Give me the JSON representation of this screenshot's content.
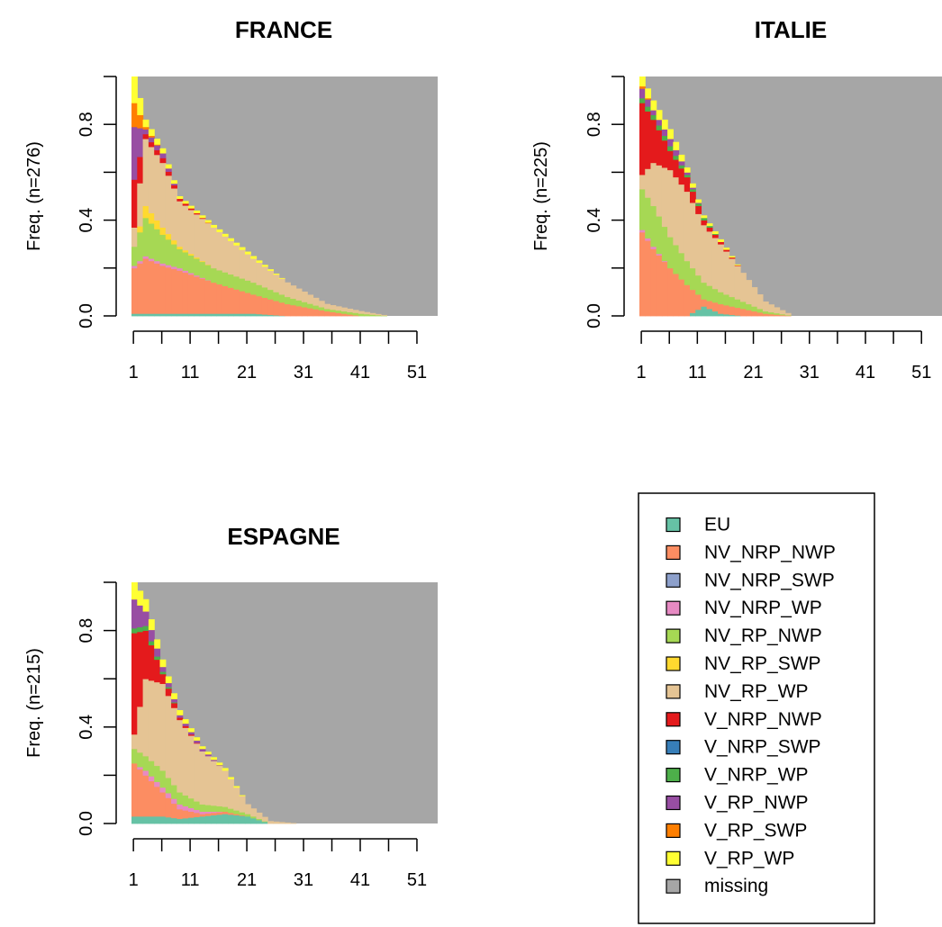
{
  "chart_data": {
    "type": "area",
    "states": [
      {
        "name": "EU",
        "color": "#66C2A5"
      },
      {
        "name": "NV_NRP_NWP",
        "color": "#FC8D62"
      },
      {
        "name": "NV_NRP_SWP",
        "color": "#8DA0CB"
      },
      {
        "name": "NV_NRP_WP",
        "color": "#E78AC3"
      },
      {
        "name": "NV_RP_NWP",
        "color": "#A6D854"
      },
      {
        "name": "NV_RP_SWP",
        "color": "#FFD92F"
      },
      {
        "name": "NV_RP_WP",
        "color": "#E5C494"
      },
      {
        "name": "V_NRP_NWP",
        "color": "#E41A1C"
      },
      {
        "name": "V_NRP_SWP",
        "color": "#377EB8"
      },
      {
        "name": "V_NRP_WP",
        "color": "#4DAF4A"
      },
      {
        "name": "V_RP_NWP",
        "color": "#984EA3"
      },
      {
        "name": "V_RP_SWP",
        "color": "#FF7F00"
      },
      {
        "name": "V_RP_WP",
        "color": "#FFFF33"
      },
      {
        "name": "missing",
        "color": "#A6A6A6"
      }
    ],
    "x_ticks": [
      "1",
      "11",
      "21",
      "31",
      "41",
      "51"
    ],
    "y_ticks": [
      "0.0",
      "0.4",
      "0.8"
    ],
    "xlim": [
      1,
      54
    ],
    "ylim": [
      0,
      1
    ],
    "panels": [
      {
        "title": "FRANCE",
        "ylabel": "Freq. (n=276)",
        "profile": [
          {
            "x": 1,
            "nonmissing": 1.0,
            "EU": 0.01,
            "NV_NRP_NWP": 0.19,
            "NV_NRP_SWP": 0.0,
            "NV_NRP_WP": 0.01,
            "NV_RP_NWP": 0.08,
            "NV_RP_SWP": 0.0,
            "NV_RP_WP": 0.08,
            "V_NRP_NWP": 0.2,
            "V_NRP_SWP": 0.0,
            "V_NRP_WP": 0.0,
            "V_RP_NWP": 0.22,
            "V_RP_SWP": 0.1,
            "V_RP_WP": 0.11
          },
          {
            "x": 3,
            "nonmissing": 0.82,
            "EU": 0.01,
            "NV_NRP_NWP": 0.23,
            "NV_NRP_SWP": 0.0,
            "NV_NRP_WP": 0.01,
            "NV_RP_NWP": 0.16,
            "NV_RP_SWP": 0.05,
            "NV_RP_WP": 0.28,
            "V_NRP_NWP": 0.02,
            "V_NRP_SWP": 0.0,
            "V_NRP_WP": 0.0,
            "V_RP_NWP": 0.02,
            "V_RP_SWP": 0.01,
            "V_RP_WP": 0.03
          },
          {
            "x": 6,
            "nonmissing": 0.7,
            "EU": 0.01,
            "NV_NRP_NWP": 0.2,
            "NV_NRP_SWP": 0.0,
            "NV_NRP_WP": 0.01,
            "NV_RP_NWP": 0.12,
            "NV_RP_SWP": 0.03,
            "NV_RP_WP": 0.27,
            "V_NRP_NWP": 0.02,
            "V_NRP_SWP": 0.0,
            "V_NRP_WP": 0.0,
            "V_RP_NWP": 0.02,
            "V_RP_SWP": 0.0,
            "V_RP_WP": 0.02
          },
          {
            "x": 9,
            "nonmissing": 0.5,
            "EU": 0.01,
            "NV_NRP_NWP": 0.18,
            "NV_NRP_SWP": 0.0,
            "NV_NRP_WP": 0.01,
            "NV_RP_NWP": 0.08,
            "NV_RP_SWP": 0.01,
            "NV_RP_WP": 0.19,
            "V_NRP_NWP": 0.01,
            "V_NRP_SWP": 0.0,
            "V_NRP_WP": 0.0,
            "V_RP_NWP": 0.0,
            "V_RP_SWP": 0.0,
            "V_RP_WP": 0.01
          },
          {
            "x": 15,
            "nonmissing": 0.38,
            "EU": 0.01,
            "NV_NRP_NWP": 0.13,
            "NV_NRP_SWP": 0.0,
            "NV_NRP_WP": 0.0,
            "NV_RP_NWP": 0.06,
            "NV_RP_SWP": 0.0,
            "NV_RP_WP": 0.17,
            "V_NRP_NWP": 0.0,
            "V_NRP_SWP": 0.0,
            "V_NRP_WP": 0.0,
            "V_RP_NWP": 0.0,
            "V_RP_SWP": 0.0,
            "V_RP_WP": 0.01
          },
          {
            "x": 22,
            "nonmissing": 0.25,
            "EU": 0.01,
            "NV_NRP_NWP": 0.08,
            "NV_NRP_SWP": 0.0,
            "NV_NRP_WP": 0.0,
            "NV_RP_NWP": 0.05,
            "NV_RP_SWP": 0.0,
            "NV_RP_WP": 0.1,
            "V_NRP_NWP": 0.0,
            "V_NRP_SWP": 0.0,
            "V_NRP_WP": 0.0,
            "V_RP_NWP": 0.0,
            "V_RP_SWP": 0.0,
            "V_RP_WP": 0.01
          },
          {
            "x": 28,
            "nonmissing": 0.14,
            "EU": 0.0,
            "NV_NRP_NWP": 0.05,
            "NV_NRP_SWP": 0.0,
            "NV_NRP_WP": 0.0,
            "NV_RP_NWP": 0.03,
            "NV_RP_SWP": 0.0,
            "NV_RP_WP": 0.06,
            "V_NRP_NWP": 0.0,
            "V_NRP_SWP": 0.0,
            "V_NRP_WP": 0.0,
            "V_RP_NWP": 0.0,
            "V_RP_SWP": 0.0,
            "V_RP_WP": 0.0
          },
          {
            "x": 35,
            "nonmissing": 0.05,
            "EU": 0.0,
            "NV_NRP_NWP": 0.02,
            "NV_NRP_SWP": 0.0,
            "NV_NRP_WP": 0.0,
            "NV_RP_NWP": 0.01,
            "NV_RP_SWP": 0.0,
            "NV_RP_WP": 0.02,
            "V_NRP_NWP": 0.0,
            "V_NRP_SWP": 0.0,
            "V_NRP_WP": 0.0,
            "V_RP_NWP": 0.0,
            "V_RP_SWP": 0.0,
            "V_RP_WP": 0.0
          },
          {
            "x": 41,
            "nonmissing": 0.02,
            "EU": 0.0,
            "NV_NRP_NWP": 0.0,
            "NV_NRP_SWP": 0.0,
            "NV_NRP_WP": 0.0,
            "NV_RP_NWP": 0.01,
            "NV_RP_SWP": 0.0,
            "NV_RP_WP": 0.01,
            "V_NRP_NWP": 0.0,
            "V_NRP_SWP": 0.0,
            "V_NRP_WP": 0.0,
            "V_RP_NWP": 0.0,
            "V_RP_SWP": 0.0,
            "V_RP_WP": 0.0
          },
          {
            "x": 46,
            "nonmissing": 0.0,
            "EU": 0.0,
            "NV_NRP_NWP": 0.0,
            "NV_NRP_SWP": 0.0,
            "NV_NRP_WP": 0.0,
            "NV_RP_NWP": 0.0,
            "NV_RP_SWP": 0.0,
            "NV_RP_WP": 0.0,
            "V_NRP_NWP": 0.0,
            "V_NRP_SWP": 0.0,
            "V_NRP_WP": 0.0,
            "V_RP_NWP": 0.0,
            "V_RP_SWP": 0.0,
            "V_RP_WP": 0.0
          }
        ]
      },
      {
        "title": "ITALIE",
        "ylabel": "Freq. (n=225)",
        "profile": [
          {
            "x": 1,
            "nonmissing": 1.0,
            "EU": 0.0,
            "NV_NRP_NWP": 0.35,
            "NV_NRP_SWP": 0.0,
            "NV_NRP_WP": 0.01,
            "NV_RP_NWP": 0.17,
            "NV_RP_SWP": 0.0,
            "NV_RP_WP": 0.06,
            "V_NRP_NWP": 0.3,
            "V_NRP_SWP": 0.0,
            "V_NRP_WP": 0.02,
            "V_RP_NWP": 0.04,
            "V_RP_SWP": 0.01,
            "V_RP_WP": 0.04
          },
          {
            "x": 3,
            "nonmissing": 0.9,
            "EU": 0.0,
            "NV_NRP_NWP": 0.28,
            "NV_NRP_SWP": 0.0,
            "NV_NRP_WP": 0.01,
            "NV_RP_NWP": 0.17,
            "NV_RP_SWP": 0.0,
            "NV_RP_WP": 0.18,
            "V_NRP_NWP": 0.18,
            "V_NRP_SWP": 0.0,
            "V_NRP_WP": 0.02,
            "V_RP_NWP": 0.02,
            "V_RP_SWP": 0.0,
            "V_RP_WP": 0.04
          },
          {
            "x": 6,
            "nonmissing": 0.78,
            "EU": 0.0,
            "NV_NRP_NWP": 0.2,
            "NV_NRP_SWP": 0.0,
            "NV_NRP_WP": 0.0,
            "NV_RP_NWP": 0.13,
            "NV_RP_SWP": 0.0,
            "NV_RP_WP": 0.28,
            "V_NRP_NWP": 0.08,
            "V_NRP_SWP": 0.0,
            "V_NRP_WP": 0.02,
            "V_RP_NWP": 0.03,
            "V_RP_SWP": 0.0,
            "V_RP_WP": 0.04
          },
          {
            "x": 9,
            "nonmissing": 0.62,
            "EU": 0.0,
            "NV_NRP_NWP": 0.13,
            "NV_NRP_SWP": 0.0,
            "NV_NRP_WP": 0.0,
            "NV_RP_NWP": 0.1,
            "NV_RP_SWP": 0.0,
            "NV_RP_WP": 0.29,
            "V_NRP_NWP": 0.06,
            "V_NRP_SWP": 0.0,
            "V_NRP_WP": 0.01,
            "V_RP_NWP": 0.01,
            "V_RP_SWP": 0.0,
            "V_RP_WP": 0.02
          },
          {
            "x": 12,
            "nonmissing": 0.42,
            "EU": 0.04,
            "NV_NRP_NWP": 0.03,
            "NV_NRP_SWP": 0.0,
            "NV_NRP_WP": 0.0,
            "NV_RP_NWP": 0.07,
            "NV_RP_SWP": 0.0,
            "NV_RP_WP": 0.24,
            "V_NRP_NWP": 0.02,
            "V_NRP_SWP": 0.0,
            "V_NRP_WP": 0.01,
            "V_RP_NWP": 0.0,
            "V_RP_SWP": 0.0,
            "V_RP_WP": 0.01
          },
          {
            "x": 15,
            "nonmissing": 0.32,
            "EU": 0.01,
            "NV_NRP_NWP": 0.04,
            "NV_NRP_SWP": 0.0,
            "NV_NRP_WP": 0.0,
            "NV_RP_NWP": 0.05,
            "NV_RP_SWP": 0.0,
            "NV_RP_WP": 0.2,
            "V_NRP_NWP": 0.01,
            "V_NRP_SWP": 0.0,
            "V_NRP_WP": 0.0,
            "V_RP_NWP": 0.0,
            "V_RP_SWP": 0.0,
            "V_RP_WP": 0.01
          },
          {
            "x": 19,
            "nonmissing": 0.18,
            "EU": 0.0,
            "NV_NRP_NWP": 0.03,
            "NV_NRP_SWP": 0.0,
            "NV_NRP_WP": 0.0,
            "NV_RP_NWP": 0.03,
            "NV_RP_SWP": 0.0,
            "NV_RP_WP": 0.12,
            "V_NRP_NWP": 0.0,
            "V_NRP_SWP": 0.0,
            "V_NRP_WP": 0.0,
            "V_RP_NWP": 0.0,
            "V_RP_SWP": 0.0,
            "V_RP_WP": 0.0
          },
          {
            "x": 23,
            "nonmissing": 0.06,
            "EU": 0.0,
            "NV_NRP_NWP": 0.01,
            "NV_NRP_SWP": 0.0,
            "NV_NRP_WP": 0.0,
            "NV_RP_NWP": 0.01,
            "NV_RP_SWP": 0.0,
            "NV_RP_WP": 0.04,
            "V_NRP_NWP": 0.0,
            "V_NRP_SWP": 0.0,
            "V_NRP_WP": 0.0,
            "V_RP_NWP": 0.0,
            "V_RP_SWP": 0.0,
            "V_RP_WP": 0.0
          },
          {
            "x": 28,
            "nonmissing": 0.0,
            "EU": 0.0,
            "NV_NRP_NWP": 0.0,
            "NV_NRP_SWP": 0.0,
            "NV_NRP_WP": 0.0,
            "NV_RP_NWP": 0.0,
            "NV_RP_SWP": 0.0,
            "NV_RP_WP": 0.0,
            "V_NRP_NWP": 0.0,
            "V_NRP_SWP": 0.0,
            "V_NRP_WP": 0.0,
            "V_RP_NWP": 0.0,
            "V_RP_SWP": 0.0,
            "V_RP_WP": 0.0
          }
        ]
      },
      {
        "title": "ESPAGNE",
        "ylabel": "Freq. (n=215)",
        "profile": [
          {
            "x": 1,
            "nonmissing": 1.0,
            "EU": 0.03,
            "NV_NRP_NWP": 0.22,
            "NV_NRP_SWP": 0.0,
            "NV_NRP_WP": 0.0,
            "NV_RP_NWP": 0.06,
            "NV_RP_SWP": 0.0,
            "NV_RP_WP": 0.06,
            "V_NRP_NWP": 0.42,
            "V_NRP_SWP": 0.0,
            "V_NRP_WP": 0.02,
            "V_RP_NWP": 0.12,
            "V_RP_SWP": 0.0,
            "V_RP_WP": 0.07
          },
          {
            "x": 3,
            "nonmissing": 0.93,
            "EU": 0.03,
            "NV_NRP_NWP": 0.17,
            "NV_NRP_SWP": 0.0,
            "NV_NRP_WP": 0.02,
            "NV_RP_NWP": 0.06,
            "NV_RP_SWP": 0.0,
            "NV_RP_WP": 0.32,
            "V_NRP_NWP": 0.2,
            "V_NRP_SWP": 0.0,
            "V_NRP_WP": 0.02,
            "V_RP_NWP": 0.06,
            "V_RP_SWP": 0.0,
            "V_RP_WP": 0.05
          },
          {
            "x": 6,
            "nonmissing": 0.68,
            "EU": 0.03,
            "NV_NRP_NWP": 0.1,
            "NV_NRP_SWP": 0.0,
            "NV_NRP_WP": 0.02,
            "NV_RP_NWP": 0.07,
            "NV_RP_SWP": 0.0,
            "NV_RP_WP": 0.36,
            "V_NRP_NWP": 0.04,
            "V_NRP_SWP": 0.0,
            "V_NRP_WP": 0.01,
            "V_RP_NWP": 0.02,
            "V_RP_SWP": 0.0,
            "V_RP_WP": 0.03
          },
          {
            "x": 9,
            "nonmissing": 0.47,
            "EU": 0.02,
            "NV_NRP_NWP": 0.04,
            "NV_NRP_SWP": 0.0,
            "NV_NRP_WP": 0.02,
            "NV_RP_NWP": 0.05,
            "NV_RP_SWP": 0.0,
            "NV_RP_WP": 0.3,
            "V_NRP_NWP": 0.01,
            "V_NRP_SWP": 0.0,
            "V_NRP_WP": 0.0,
            "V_RP_NWP": 0.01,
            "V_RP_SWP": 0.0,
            "V_RP_WP": 0.02
          },
          {
            "x": 13,
            "nonmissing": 0.32,
            "EU": 0.03,
            "NV_NRP_NWP": 0.01,
            "NV_NRP_SWP": 0.0,
            "NV_NRP_WP": 0.01,
            "NV_RP_NWP": 0.03,
            "NV_RP_SWP": 0.0,
            "NV_RP_WP": 0.22,
            "V_NRP_NWP": 0.0,
            "V_NRP_SWP": 0.0,
            "V_NRP_WP": 0.0,
            "V_RP_NWP": 0.01,
            "V_RP_SWP": 0.0,
            "V_RP_WP": 0.01
          },
          {
            "x": 17,
            "nonmissing": 0.23,
            "EU": 0.04,
            "NV_NRP_NWP": 0.01,
            "NV_NRP_SWP": 0.0,
            "NV_NRP_WP": 0.0,
            "NV_RP_NWP": 0.02,
            "NV_RP_SWP": 0.0,
            "NV_RP_WP": 0.15,
            "V_NRP_NWP": 0.0,
            "V_NRP_SWP": 0.0,
            "V_NRP_WP": 0.0,
            "V_RP_NWP": 0.0,
            "V_RP_SWP": 0.0,
            "V_RP_WP": 0.01
          },
          {
            "x": 21,
            "nonmissing": 0.08,
            "EU": 0.03,
            "NV_NRP_NWP": 0.0,
            "NV_NRP_SWP": 0.0,
            "NV_NRP_WP": 0.0,
            "NV_RP_NWP": 0.01,
            "NV_RP_SWP": 0.0,
            "NV_RP_WP": 0.04,
            "V_NRP_NWP": 0.0,
            "V_NRP_SWP": 0.0,
            "V_NRP_WP": 0.0,
            "V_RP_NWP": 0.0,
            "V_RP_SWP": 0.0,
            "V_RP_WP": 0.0
          },
          {
            "x": 25,
            "nonmissing": 0.01,
            "EU": 0.0,
            "NV_NRP_NWP": 0.0,
            "NV_NRP_SWP": 0.0,
            "NV_NRP_WP": 0.0,
            "NV_RP_NWP": 0.0,
            "NV_RP_SWP": 0.0,
            "NV_RP_WP": 0.01,
            "V_NRP_NWP": 0.0,
            "V_NRP_SWP": 0.0,
            "V_NRP_WP": 0.0,
            "V_RP_NWP": 0.0,
            "V_RP_SWP": 0.0,
            "V_RP_WP": 0.0
          },
          {
            "x": 30,
            "nonmissing": 0.0,
            "EU": 0.0,
            "NV_NRP_NWP": 0.0,
            "NV_NRP_SWP": 0.0,
            "NV_NRP_WP": 0.0,
            "NV_RP_NWP": 0.0,
            "NV_RP_SWP": 0.0,
            "NV_RP_WP": 0.0,
            "V_NRP_NWP": 0.0,
            "V_NRP_SWP": 0.0,
            "V_NRP_WP": 0.0,
            "V_RP_NWP": 0.0,
            "V_RP_SWP": 0.0,
            "V_RP_WP": 0.0
          }
        ]
      }
    ],
    "legend": {
      "placement": "bottom-right"
    }
  }
}
